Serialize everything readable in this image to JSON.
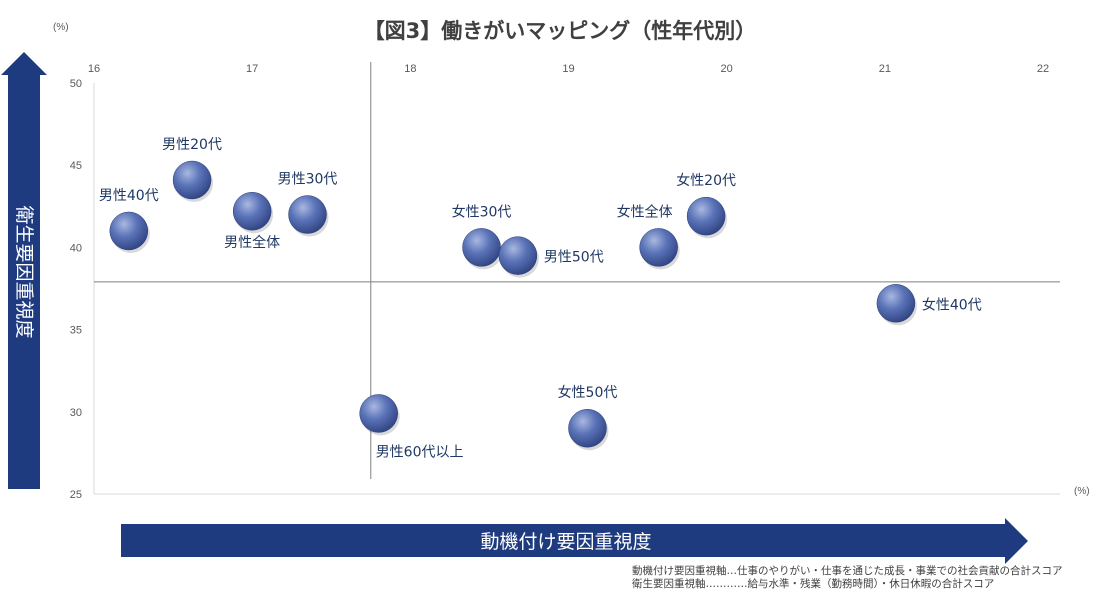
{
  "chart_data": {
    "type": "scatter",
    "title": "【図3】働きがいマッピング（性年代別）",
    "xlabel": "動機付け要因重視度",
    "ylabel": "衛生要因重視度",
    "x_unit": "(%)",
    "y_unit": "(%)",
    "xlim": [
      16,
      22
    ],
    "ylim": [
      25,
      50
    ],
    "x_ticks": [
      "16",
      "17",
      "18",
      "19",
      "20",
      "21",
      "22"
    ],
    "y_ticks": [
      "25",
      "30",
      "35",
      "40",
      "45",
      "50"
    ],
    "x_axis_position": "top",
    "reference_lines": {
      "x": 17.75,
      "y": 37.9
    },
    "grid": false,
    "legend": "none",
    "marker_color": "#4a64a8",
    "accent_color": "#1f3b80",
    "points": [
      {
        "label": "男性20代",
        "x": 16.62,
        "y": 44.1,
        "label_pos": "above"
      },
      {
        "label": "男性40代",
        "x": 16.22,
        "y": 41.0,
        "label_pos": "above"
      },
      {
        "label": "男性全体",
        "x": 17.0,
        "y": 42.2,
        "label_pos": "below"
      },
      {
        "label": "男性30代",
        "x": 17.35,
        "y": 42.0,
        "label_pos": "above"
      },
      {
        "label": "女性30代",
        "x": 18.45,
        "y": 40.0,
        "label_pos": "above"
      },
      {
        "label": "男性50代",
        "x": 18.68,
        "y": 39.5,
        "label_pos": "right"
      },
      {
        "label": "女性全体",
        "x": 19.57,
        "y": 40.0,
        "label_pos": "aboveleft"
      },
      {
        "label": "女性20代",
        "x": 19.87,
        "y": 41.9,
        "label_pos": "above"
      },
      {
        "label": "女性40代",
        "x": 21.07,
        "y": 36.6,
        "label_pos": "right"
      },
      {
        "label": "男性60代以上",
        "x": 17.8,
        "y": 29.9,
        "label_pos": "belowright"
      },
      {
        "label": "女性50代",
        "x": 19.12,
        "y": 29.0,
        "label_pos": "above"
      }
    ],
    "notes": [
      "動機付け要因重視軸…仕事のやりがい・仕事を通じた成長・事業での社会貢献の合計スコア",
      "衛生要因重視軸…………給与水準・残業（勤務時間）・休日休暇の合計スコア"
    ]
  }
}
